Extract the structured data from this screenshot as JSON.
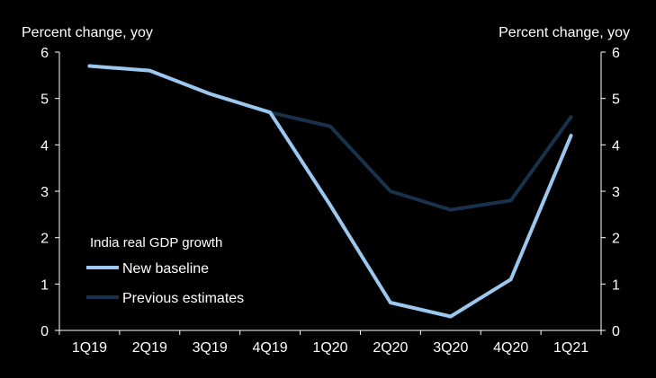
{
  "chart_data": {
    "type": "line",
    "categories": [
      "1Q19",
      "2Q19",
      "3Q19",
      "4Q19",
      "1Q20",
      "2Q20",
      "3Q20",
      "4Q20",
      "1Q21"
    ],
    "series": [
      {
        "name": "Previous estimates",
        "color": "#17324a",
        "values": [
          5.7,
          5.6,
          5.1,
          4.7,
          4.4,
          3.0,
          2.6,
          2.8,
          4.6
        ]
      },
      {
        "name": "New baseline",
        "color": "#9cc8ef",
        "values": [
          5.7,
          5.6,
          5.1,
          4.7,
          2.7,
          0.6,
          0.3,
          1.1,
          4.2
        ]
      }
    ],
    "ylabel_left": "Percent change, yoy",
    "ylabel_right": "Percent change, yoy",
    "ylim": [
      0,
      6
    ],
    "yticks": [
      "0",
      "1",
      "2",
      "3",
      "4",
      "5",
      "6"
    ],
    "legend": {
      "title": "India real GDP growth",
      "entries": [
        "New baseline",
        "Previous estimates"
      ],
      "placement": "bottom-left"
    },
    "axis_color": "#ffffff",
    "background": "#000000"
  }
}
